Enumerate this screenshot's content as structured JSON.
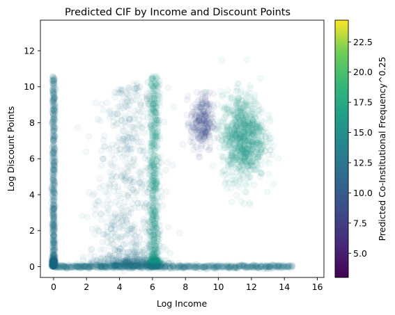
{
  "chart_data": {
    "type": "scatter",
    "title": "Predicted CIF by Income and Discount Points",
    "xlabel": "Log Income",
    "ylabel": "Log Discount Points",
    "xlim": [
      -0.8,
      16.4
    ],
    "ylim": [
      -0.6,
      13.7
    ],
    "x_ticks": [
      0,
      2,
      4,
      6,
      8,
      10,
      12,
      14,
      16
    ],
    "y_ticks": [
      0,
      2,
      4,
      6,
      8,
      10,
      12
    ],
    "grid": false,
    "colormap": "viridis",
    "marker_alpha": 0.05,
    "colorbar": {
      "label": "Predicted Co-Institutional Frequency^0.25",
      "range": [
        3.0,
        24.3
      ],
      "ticks": [
        5.0,
        7.5,
        10.0,
        12.5,
        15.0,
        17.5,
        20.0,
        22.5
      ]
    },
    "clusters": [
      {
        "name": "main-blob",
        "x_center": 4.6,
        "x_spread": 1.1,
        "y_range": [
          0,
          10.2
        ],
        "color_value": 11.5,
        "density": "high"
      },
      {
        "name": "x-zero-column",
        "x_center": 0.0,
        "x_spread": 0.05,
        "y_range": [
          0,
          10.6
        ],
        "color_value": 12.0,
        "density": "high"
      },
      {
        "name": "x-six-strip",
        "x_center": 6.1,
        "x_spread": 0.15,
        "y_range": [
          0,
          10.6
        ],
        "color_value": 16.0,
        "density": "high"
      },
      {
        "name": "y-zero-row",
        "x_range": [
          0,
          14.5
        ],
        "y_center": 0.0,
        "y_spread": 0.05,
        "color_value": 13.0,
        "density": "high"
      },
      {
        "name": "x-nine-cluster",
        "x_center": 9.0,
        "x_spread": 0.35,
        "y_center": 8.0,
        "y_spread": 0.8,
        "color_value": 8.0,
        "density": "medium"
      },
      {
        "name": "x-eleven-cluster",
        "x_center": 11.5,
        "x_spread": 0.65,
        "y_center": 7.2,
        "y_spread": 1.2,
        "color_value": 16.5,
        "density": "high"
      }
    ]
  }
}
